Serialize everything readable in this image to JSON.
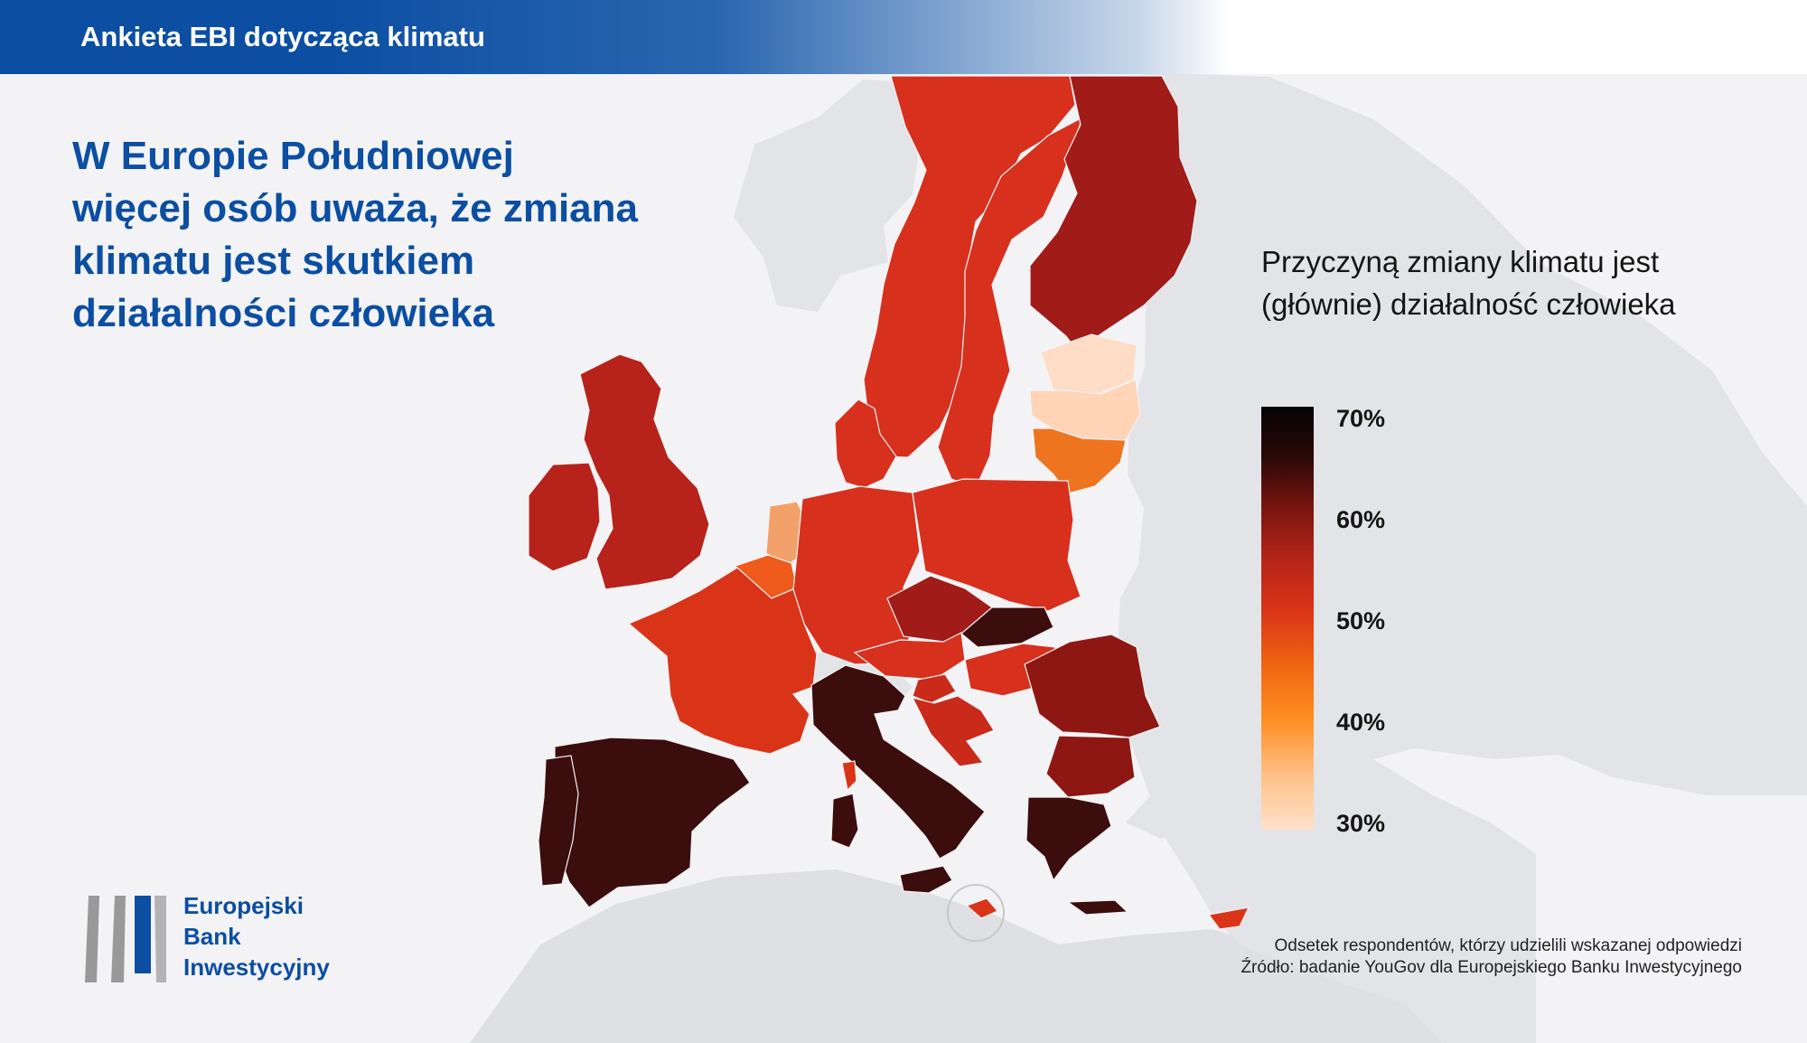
{
  "header": {
    "title": "Ankieta EBI dotycząca klimatu"
  },
  "headline": {
    "lines": [
      "W Europie Południowej",
      "więcej osób uważa, że zmiana",
      "klimatu jest skutkiem",
      "działalności człowieka"
    ]
  },
  "legend": {
    "title_lines": [
      "Przyczyną zmiany klimatu jest",
      "(głównie) działalność człowieka"
    ],
    "ticks": [
      "70%",
      "60%",
      "50%",
      "40%",
      "30%"
    ]
  },
  "footer": {
    "note": "Odsetek respondentów, którzy udzielili wskazanej odpowiedzi",
    "source": "Źródło: badanie YouGov dla Europejskiego Banku Inwestycyjnego"
  },
  "logo": {
    "lines": [
      "Europejski",
      "Bank",
      "Inwestycyjny"
    ]
  },
  "colors": {
    "brand_blue": "#0b4ea2",
    "light_peach": "#ffd8bf",
    "orange": "#ef7420",
    "red": "#d93418",
    "dark_red": "#a7201a",
    "darkest": "#3b0d0c"
  }
}
